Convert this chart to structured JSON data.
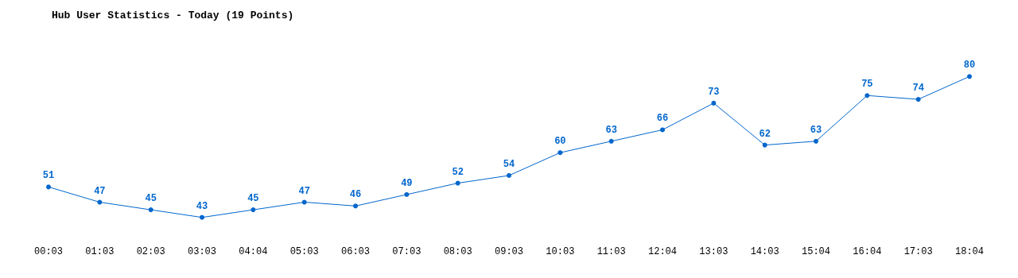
{
  "chart_data": {
    "type": "line",
    "title": "Hub User Statistics - Today (19 Points)",
    "categories": [
      "00:03",
      "01:03",
      "02:03",
      "03:03",
      "04:04",
      "05:03",
      "06:03",
      "07:03",
      "08:03",
      "09:03",
      "10:03",
      "11:03",
      "12:04",
      "13:03",
      "14:03",
      "15:04",
      "16:04",
      "17:03",
      "18:04"
    ],
    "values": [
      51,
      47,
      45,
      43,
      45,
      47,
      46,
      49,
      52,
      54,
      60,
      63,
      66,
      73,
      62,
      63,
      75,
      74,
      80
    ],
    "color": "#0066cc",
    "data_labels": true,
    "marker": "circle",
    "line_style": "solid"
  }
}
